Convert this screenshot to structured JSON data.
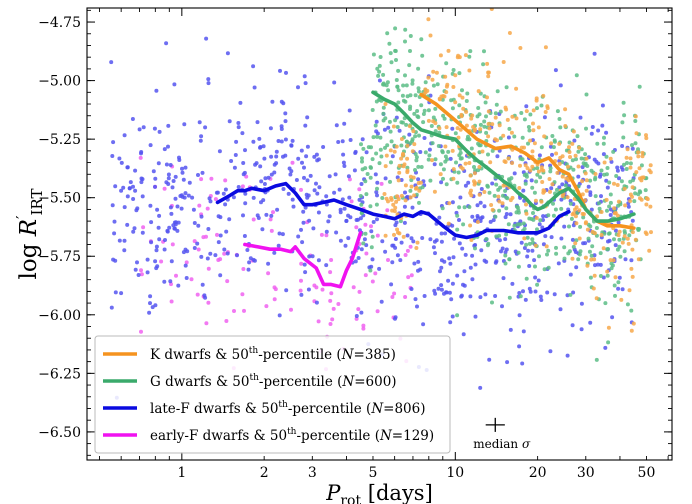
{
  "chart_data": {
    "type": "scatter",
    "title": "",
    "xlabel": "P_rot [days]",
    "ylabel": "log R'_IRT",
    "xscale": "log",
    "xlim": [
      0.45,
      62
    ],
    "ylim": [
      -6.62,
      -4.69
    ],
    "grid": false,
    "legend_position": "lower-left",
    "xticks": [
      1,
      2,
      3,
      5,
      10,
      20,
      30,
      50
    ],
    "yticks": [
      -4.75,
      -5.0,
      -5.25,
      -5.5,
      -5.75,
      -6.0,
      -6.25,
      -6.5
    ],
    "ytick_labels": [
      "−4.75",
      "−5.00",
      "−5.25",
      "−5.50",
      "−5.75",
      "−6.00",
      "−6.25",
      "−6.50"
    ],
    "series": [
      {
        "name": "K dwarfs & 50th-percentile (N=385)",
        "color": "#f5931f",
        "point_color": "#f7a84a",
        "n": 385,
        "scatter_range": {
          "x": [
            5.5,
            52
          ],
          "y_center": -5.45,
          "y_spread": 0.32
        },
        "median_x": [
          7.5,
          8.5,
          10,
          12,
          14,
          16,
          18,
          20,
          22,
          24,
          26,
          28,
          30,
          33,
          36,
          40,
          45
        ],
        "median_y": [
          -5.06,
          -5.1,
          -5.17,
          -5.25,
          -5.29,
          -5.28,
          -5.31,
          -5.35,
          -5.33,
          -5.38,
          -5.4,
          -5.47,
          -5.55,
          -5.6,
          -5.62,
          -5.62,
          -5.63
        ]
      },
      {
        "name": "G dwarfs & 50th-percentile (N=600)",
        "color": "#3aaa6b",
        "point_color": "#5cbd86",
        "n": 600,
        "scatter_range": {
          "x": [
            4.5,
            50
          ],
          "y_center": -5.45,
          "y_spread": 0.36
        },
        "median_x": [
          5,
          5.5,
          6,
          6.5,
          7,
          7.5,
          8,
          9,
          10,
          11,
          12,
          13,
          14,
          15,
          16,
          17,
          18,
          19,
          20,
          21,
          22,
          24,
          26,
          28,
          30,
          33,
          36,
          40,
          45
        ],
        "median_y": [
          -5.05,
          -5.08,
          -5.1,
          -5.14,
          -5.18,
          -5.21,
          -5.22,
          -5.24,
          -5.25,
          -5.3,
          -5.34,
          -5.37,
          -5.4,
          -5.43,
          -5.45,
          -5.48,
          -5.5,
          -5.53,
          -5.55,
          -5.54,
          -5.52,
          -5.48,
          -5.46,
          -5.5,
          -5.55,
          -5.6,
          -5.6,
          -5.59,
          -5.57
        ]
      },
      {
        "name": "late-F dwarfs & 50th-percentile (N=806)",
        "color": "#0a0ae0",
        "point_color": "#5555f0",
        "n": 806,
        "scatter_range": {
          "x": [
            0.55,
            45
          ],
          "y_center": -5.55,
          "y_spread": 0.42
        },
        "median_x": [
          1.35,
          1.5,
          1.6,
          1.7,
          1.8,
          2.0,
          2.2,
          2.4,
          2.6,
          2.8,
          3.0,
          3.3,
          3.6,
          4.0,
          4.5,
          5.0,
          5.5,
          6.0,
          6.5,
          7.0,
          7.5,
          8.0,
          9.0,
          10.0,
          11.0,
          12.0,
          13.0,
          15.0,
          17.0,
          19.0,
          20.0,
          22.0,
          24.0,
          26.0
        ],
        "median_y": [
          -5.52,
          -5.49,
          -5.47,
          -5.47,
          -5.46,
          -5.47,
          -5.45,
          -5.44,
          -5.48,
          -5.53,
          -5.53,
          -5.52,
          -5.51,
          -5.53,
          -5.55,
          -5.57,
          -5.58,
          -5.59,
          -5.57,
          -5.58,
          -5.56,
          -5.57,
          -5.62,
          -5.66,
          -5.67,
          -5.66,
          -5.64,
          -5.64,
          -5.65,
          -5.65,
          -5.65,
          -5.63,
          -5.58,
          -5.56
        ]
      },
      {
        "name": "early-F dwarfs & 50th-percentile (N=129)",
        "color": "#f012f0",
        "point_color": "#f062f0",
        "n": 129,
        "scatter_range": {
          "x": [
            0.7,
            7
          ],
          "y_center": -5.75,
          "y_spread": 0.36
        },
        "median_x": [
          1.7,
          1.9,
          2.1,
          2.3,
          2.5,
          2.6,
          2.8,
          3.1,
          3.3,
          3.5,
          3.8,
          4.0,
          4.2,
          4.5
        ],
        "median_y": [
          -5.7,
          -5.71,
          -5.72,
          -5.72,
          -5.73,
          -5.71,
          -5.76,
          -5.8,
          -5.87,
          -5.87,
          -5.88,
          -5.81,
          -5.76,
          -5.65
        ]
      }
    ],
    "median_error": {
      "label": "median σ",
      "x": 14.0,
      "y": -6.47,
      "x_err_dex": 0.035,
      "y_err": 0.03
    }
  }
}
